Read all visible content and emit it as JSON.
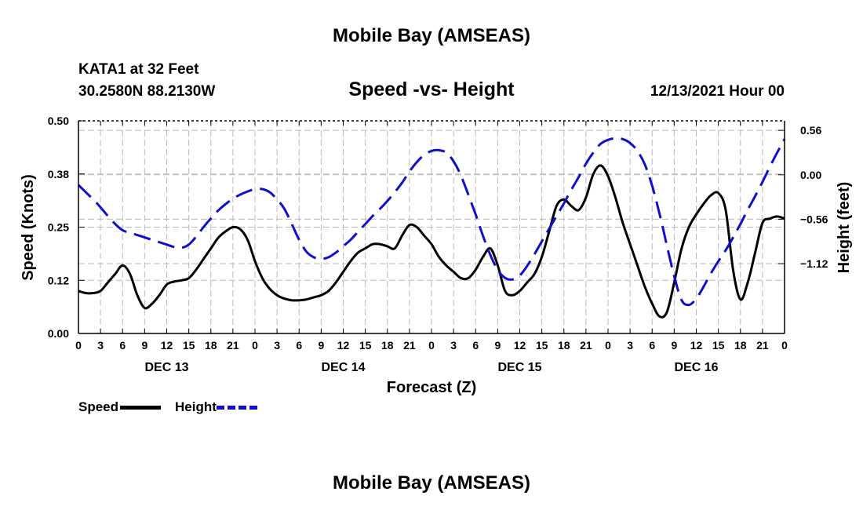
{
  "page": {
    "title": "Mobile Bay (AMSEAS)",
    "bottom_title": "Mobile Bay (AMSEAS)",
    "station": "KATA1 at 32 Feet",
    "coords": "30.2580N  88.2130W",
    "run": "12/13/2021 Hour 00"
  },
  "chart_data": {
    "type": "line",
    "title": "Speed -vs- Height",
    "xlabel": "Forecast (Z)",
    "ylabel_left": "Speed (Knots)",
    "ylabel_right": "Height (feet)",
    "x_range_hours": [
      0,
      96
    ],
    "x_tick_hours": [
      0,
      3,
      6,
      9,
      12,
      15,
      18,
      21,
      24,
      27,
      30,
      33,
      36,
      39,
      42,
      45,
      48,
      51,
      54,
      57,
      60,
      63,
      66,
      69,
      72,
      75,
      78,
      81,
      84,
      87,
      90,
      93,
      96
    ],
    "x_tick_labels": [
      "0",
      "3",
      "6",
      "9",
      "12",
      "15",
      "18",
      "21",
      "0",
      "3",
      "6",
      "9",
      "12",
      "15",
      "18",
      "21",
      "0",
      "3",
      "6",
      "9",
      "12",
      "15",
      "18",
      "21",
      "0",
      "3",
      "6",
      "9",
      "12",
      "15",
      "18",
      "21",
      "0"
    ],
    "date_labels": [
      {
        "hour": 12,
        "text": "DEC 13"
      },
      {
        "hour": 36,
        "text": "DEC 14"
      },
      {
        "hour": 60,
        "text": "DEC 15"
      },
      {
        "hour": 84,
        "text": "DEC 16"
      }
    ],
    "y_left_range": [
      0,
      0.5
    ],
    "y_left_ticks": [
      0,
      0.125,
      0.25,
      0.375,
      0.5
    ],
    "y_left_tick_labels": [
      "0.00",
      "0.12",
      "0.25",
      "0.38",
      "0.50"
    ],
    "y_right_range": [
      -2.0,
      0.68
    ],
    "y_right_ticks": [
      -1.12,
      -0.56,
      0.0,
      0.56
    ],
    "y_right_tick_labels": [
      "−1.12",
      "−0.56",
      "0.00",
      "0.56"
    ],
    "grid": true,
    "legend": {
      "position": "bottom-left",
      "speed_label": "Speed",
      "height_label": "Height"
    },
    "series": [
      {
        "name": "Speed",
        "axis": "left",
        "color": "#000000",
        "dash": "solid",
        "x": [
          0,
          1,
          2,
          3,
          4,
          5,
          6,
          7,
          8,
          9,
          10,
          11,
          12,
          13,
          14,
          15,
          16,
          17,
          18,
          19,
          20,
          21,
          22,
          23,
          24,
          25,
          26,
          27,
          28,
          29,
          30,
          31,
          32,
          33,
          34,
          35,
          36,
          37,
          38,
          39,
          40,
          41,
          42,
          43,
          44,
          45,
          46,
          47,
          48,
          49,
          50,
          51,
          52,
          53,
          54,
          55,
          56,
          57,
          58,
          59,
          60,
          61,
          62,
          63,
          64,
          65,
          66,
          67,
          68,
          69,
          70,
          71,
          72,
          73,
          74,
          75,
          76,
          77,
          78,
          79,
          80,
          81,
          82,
          83,
          84,
          85,
          86,
          87,
          88,
          89,
          90,
          91,
          92,
          93,
          94,
          95,
          96
        ],
        "y": [
          0.1,
          0.095,
          0.095,
          0.1,
          0.12,
          0.14,
          0.16,
          0.14,
          0.09,
          0.06,
          0.07,
          0.09,
          0.115,
          0.122,
          0.125,
          0.13,
          0.15,
          0.175,
          0.2,
          0.225,
          0.24,
          0.25,
          0.245,
          0.22,
          0.17,
          0.13,
          0.105,
          0.09,
          0.082,
          0.078,
          0.078,
          0.08,
          0.085,
          0.09,
          0.1,
          0.12,
          0.145,
          0.17,
          0.19,
          0.2,
          0.21,
          0.21,
          0.205,
          0.2,
          0.23,
          0.255,
          0.25,
          0.23,
          0.21,
          0.18,
          0.16,
          0.145,
          0.13,
          0.13,
          0.15,
          0.18,
          0.2,
          0.16,
          0.1,
          0.09,
          0.1,
          0.12,
          0.14,
          0.18,
          0.24,
          0.3,
          0.315,
          0.3,
          0.29,
          0.32,
          0.375,
          0.395,
          0.37,
          0.32,
          0.26,
          0.21,
          0.16,
          0.11,
          0.07,
          0.04,
          0.05,
          0.12,
          0.2,
          0.25,
          0.28,
          0.305,
          0.325,
          0.33,
          0.29,
          0.15,
          0.08,
          0.12,
          0.19,
          0.26,
          0.27,
          0.275,
          0.27
        ]
      },
      {
        "name": "Height",
        "axis": "right",
        "color": "#1010cc",
        "dash": "dashed",
        "x": [
          0,
          1,
          2,
          3,
          4,
          5,
          6,
          7,
          8,
          9,
          10,
          11,
          12,
          13,
          14,
          15,
          16,
          17,
          18,
          19,
          20,
          21,
          22,
          23,
          24,
          25,
          26,
          27,
          28,
          29,
          30,
          31,
          32,
          33,
          34,
          35,
          36,
          37,
          38,
          39,
          40,
          41,
          42,
          43,
          44,
          45,
          46,
          47,
          48,
          49,
          50,
          51,
          52,
          53,
          54,
          55,
          56,
          57,
          58,
          59,
          60,
          61,
          62,
          63,
          64,
          65,
          66,
          67,
          68,
          69,
          70,
          71,
          72,
          73,
          74,
          75,
          76,
          77,
          78,
          79,
          80,
          81,
          82,
          83,
          84,
          85,
          86,
          87,
          88,
          89,
          90,
          91,
          92,
          93,
          94,
          95,
          96
        ],
        "y": [
          -0.13,
          -0.22,
          -0.31,
          -0.41,
          -0.52,
          -0.62,
          -0.7,
          -0.73,
          -0.76,
          -0.79,
          -0.82,
          -0.85,
          -0.88,
          -0.91,
          -0.92,
          -0.88,
          -0.78,
          -0.66,
          -0.55,
          -0.45,
          -0.37,
          -0.3,
          -0.25,
          -0.21,
          -0.18,
          -0.18,
          -0.22,
          -0.31,
          -0.43,
          -0.62,
          -0.82,
          -0.97,
          -1.04,
          -1.06,
          -1.04,
          -0.98,
          -0.9,
          -0.82,
          -0.72,
          -0.62,
          -0.52,
          -0.43,
          -0.33,
          -0.22,
          -0.1,
          0.04,
          0.16,
          0.25,
          0.3,
          0.31,
          0.28,
          0.17,
          -0.01,
          -0.25,
          -0.5,
          -0.77,
          -1.01,
          -1.2,
          -1.3,
          -1.32,
          -1.27,
          -1.15,
          -1.0,
          -0.84,
          -0.68,
          -0.52,
          -0.36,
          -0.19,
          -0.03,
          0.14,
          0.28,
          0.39,
          0.44,
          0.46,
          0.45,
          0.4,
          0.3,
          0.13,
          -0.14,
          -0.49,
          -0.89,
          -1.28,
          -1.58,
          -1.64,
          -1.56,
          -1.41,
          -1.24,
          -1.09,
          -0.95,
          -0.79,
          -0.62,
          -0.44,
          -0.27,
          -0.09,
          0.1,
          0.28,
          0.45
        ]
      }
    ]
  }
}
